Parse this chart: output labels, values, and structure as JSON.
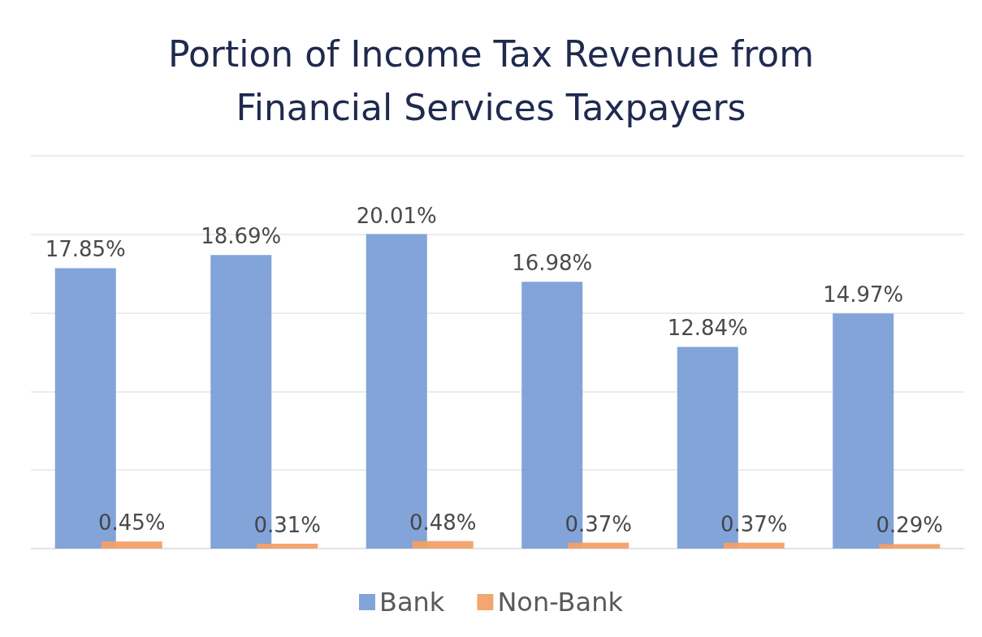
{
  "chart_data": {
    "type": "bar",
    "title": "Portion of Income Tax Revenue from\nFinancial Services Taxpayers",
    "categories": [
      null,
      null,
      null,
      null,
      null,
      null
    ],
    "series": [
      {
        "name": "Bank",
        "color": "#7b9fd6",
        "values": [
          17.85,
          18.69,
          20.01,
          16.98,
          12.84,
          14.97
        ],
        "value_labels": [
          "17.85%",
          "18.69%",
          "20.01%",
          "16.98%",
          "12.84%",
          "14.97%"
        ]
      },
      {
        "name": "Non-Bank",
        "color": "#f2a06a",
        "values": [
          0.45,
          0.31,
          0.48,
          0.37,
          0.37,
          0.29
        ],
        "value_labels": [
          "0.45%",
          "0.31%",
          "0.48%",
          "0.37%",
          "0.37%",
          "0.29%"
        ]
      }
    ],
    "ylim": [
      0,
      25
    ],
    "yticks": [
      0,
      5,
      10,
      15,
      20,
      25
    ],
    "grid": "y",
    "tick_labels": false,
    "legend": "bottom"
  }
}
